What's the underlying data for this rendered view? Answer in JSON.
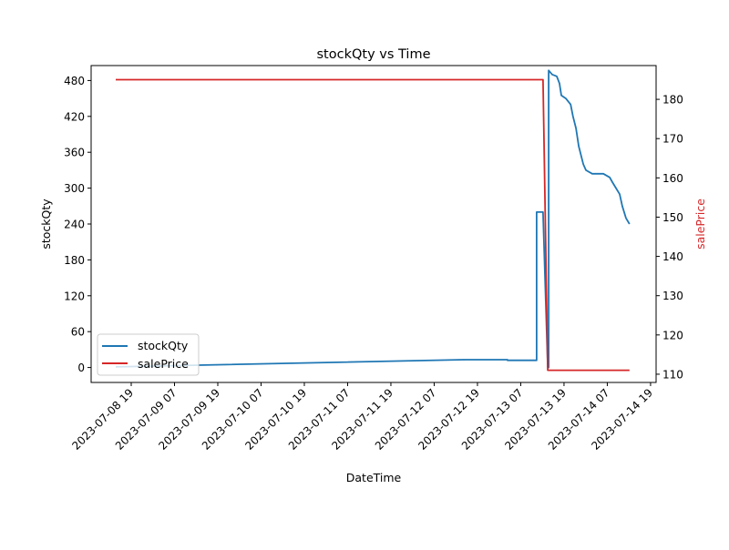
{
  "chart_data": {
    "type": "line",
    "title": "stockQty vs Time",
    "xlabel": "DateTime",
    "ylabel": "stockQty",
    "y2label": "salePrice",
    "xlim": [
      "2023-07-08 07:53",
      "2023-07-14 20:32"
    ],
    "ylim": [
      -25,
      505
    ],
    "y2lim": [
      107.9,
      188.6
    ],
    "x_ticks": [
      "2023-07-08 19",
      "2023-07-09 07",
      "2023-07-09 19",
      "2023-07-10 07",
      "2023-07-10 19",
      "2023-07-11 07",
      "2023-07-11 19",
      "2023-07-12 07",
      "2023-07-12 19",
      "2023-07-13 07",
      "2023-07-13 19",
      "2023-07-14 07",
      "2023-07-14 19"
    ],
    "y_ticks": [
      0,
      60,
      120,
      180,
      240,
      300,
      360,
      420,
      480
    ],
    "y2_ticks": [
      110,
      120,
      130,
      140,
      150,
      160,
      170,
      180
    ],
    "legend": {
      "placement": "lower-left",
      "entries": [
        "stockQty",
        "salePrice"
      ]
    },
    "series": [
      {
        "name": "stockQty",
        "axis": "left",
        "color": "#1f77b4",
        "points": [
          [
            "2023-07-08 14:42",
            1
          ],
          [
            "2023-07-12 15:30",
            13
          ],
          [
            "2023-07-13 03:20",
            13
          ],
          [
            "2023-07-13 03:20",
            12
          ],
          [
            "2023-07-13 11:25",
            12
          ],
          [
            "2023-07-13 11:25",
            260
          ],
          [
            "2023-07-13 13:10",
            260
          ],
          [
            "2023-07-13 14:30",
            0
          ],
          [
            "2023-07-13 14:45",
            0
          ],
          [
            "2023-07-13 14:45",
            497
          ],
          [
            "2023-07-13 15:42",
            490
          ],
          [
            "2023-07-13 17:00",
            487
          ],
          [
            "2023-07-13 17:45",
            475
          ],
          [
            "2023-07-13 18:15",
            455
          ],
          [
            "2023-07-13 19:30",
            450
          ],
          [
            "2023-07-13 20:50",
            440
          ],
          [
            "2023-07-13 21:30",
            420
          ],
          [
            "2023-07-13 22:20",
            400
          ],
          [
            "2023-07-13 23:05",
            370
          ],
          [
            "2023-07-14 00:20",
            340
          ],
          [
            "2023-07-14 01:05",
            330
          ],
          [
            "2023-07-14 02:50",
            324
          ],
          [
            "2023-07-14 05:55",
            324
          ],
          [
            "2023-07-14 07:40",
            318
          ],
          [
            "2023-07-14 08:25",
            310
          ],
          [
            "2023-07-14 09:25",
            300
          ],
          [
            "2023-07-14 10:25",
            290
          ],
          [
            "2023-07-14 11:10",
            270
          ],
          [
            "2023-07-14 12:10",
            250
          ],
          [
            "2023-07-14 13:10",
            240
          ]
        ]
      },
      {
        "name": "salePrice",
        "axis": "right",
        "color": "#d62728",
        "points": [
          [
            "2023-07-08 14:42",
            185
          ],
          [
            "2023-07-13 13:10",
            185
          ],
          [
            "2023-07-13 14:30",
            111
          ],
          [
            "2023-07-14 13:10",
            111
          ]
        ]
      }
    ]
  }
}
